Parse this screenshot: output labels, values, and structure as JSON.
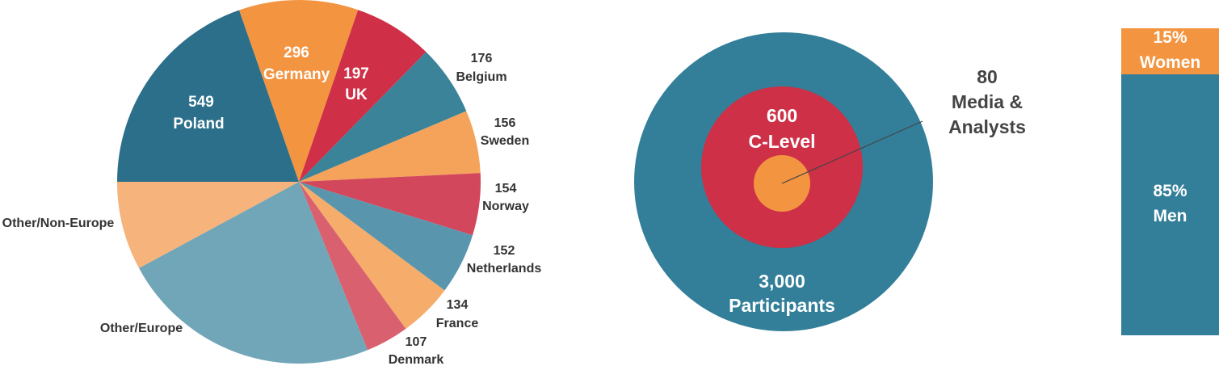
{
  "chart_data": [
    {
      "type": "pie",
      "categories": [
        "Poland",
        "Germany",
        "UK",
        "Belgium",
        "Sweden",
        "Norway",
        "Netherlands",
        "France",
        "Denmark",
        "Other/Europe",
        "Other/Non-Europe"
      ],
      "values": [
        549,
        296,
        197,
        176,
        156,
        154,
        152,
        134,
        107,
        650,
        220
      ],
      "value_labels": [
        "549",
        "296",
        "197",
        "176",
        "156",
        "154",
        "152",
        "134",
        "107",
        null,
        null
      ],
      "colors": [
        "#2c6f8a",
        "#f39440",
        "#cf3048",
        "#3b8399",
        "#f5a35a",
        "#d2475b",
        "#5996ad",
        "#f6ac6a",
        "#d9606f",
        "#71a5b8",
        "#f6b37b"
      ]
    },
    {
      "type": "concentric",
      "categories": [
        "Participants",
        "C-Level",
        "Media & Analysts"
      ],
      "values": [
        3000,
        600,
        80
      ],
      "value_labels": [
        "3,000",
        "600",
        "80"
      ],
      "colors": [
        "#337f99",
        "#cd3047",
        "#f39440"
      ]
    },
    {
      "type": "stacked-bar",
      "series": [
        {
          "name": "Women",
          "color": "#f39440",
          "values": [
            15
          ],
          "value_labels": [
            "15%"
          ]
        },
        {
          "name": "Men",
          "color": "#337f99",
          "values": [
            85
          ],
          "value_labels": [
            "85%"
          ]
        }
      ],
      "ylim": [
        0,
        100
      ]
    }
  ]
}
